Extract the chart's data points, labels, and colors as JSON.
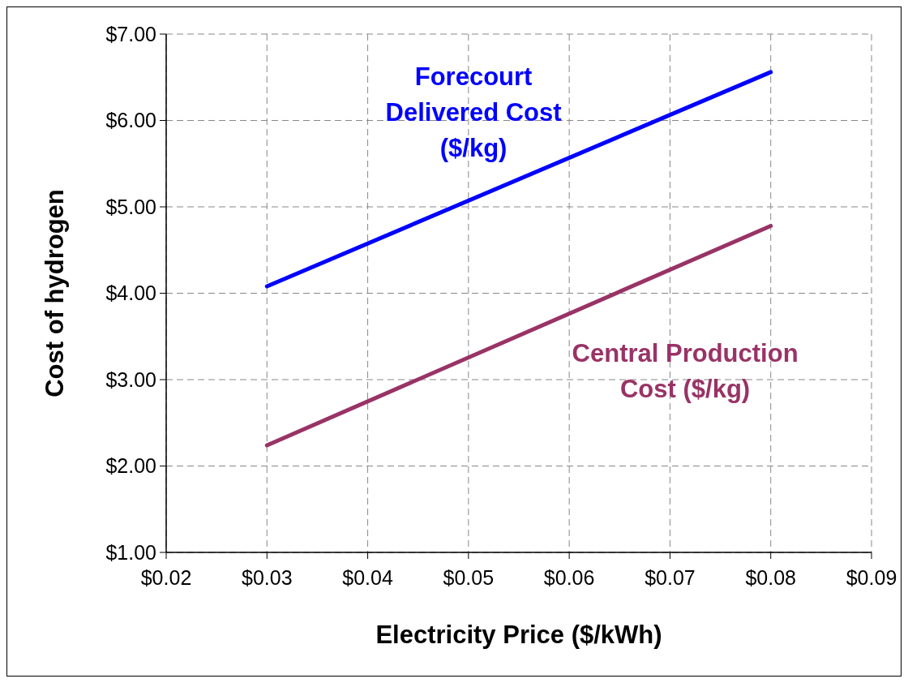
{
  "chart_data": {
    "type": "line",
    "xlabel": "Electricity Price ($/kWh)",
    "ylabel": "Cost of hydrogen",
    "x": [
      0.03,
      0.08
    ],
    "series": [
      {
        "name": "Forecourt Delivered Cost ($/kg)",
        "color": "#0000ff",
        "values": [
          4.08,
          6.56
        ]
      },
      {
        "name": "Central Production Cost ($/kg)",
        "color": "#993366",
        "values": [
          2.24,
          4.78
        ]
      }
    ],
    "xlim": [
      0.02,
      0.09
    ],
    "xticks": [
      {
        "value": 0.02,
        "label": "$0.02"
      },
      {
        "value": 0.03,
        "label": "$0.03"
      },
      {
        "value": 0.04,
        "label": "$0.04"
      },
      {
        "value": 0.05,
        "label": "$0.05"
      },
      {
        "value": 0.06,
        "label": "$0.06"
      },
      {
        "value": 0.07,
        "label": "$0.07"
      },
      {
        "value": 0.08,
        "label": "$0.08"
      },
      {
        "value": 0.09,
        "label": "$0.09"
      }
    ],
    "ylim": [
      1,
      7
    ],
    "yticks": [
      {
        "value": 1,
        "label": "$1.00"
      },
      {
        "value": 2,
        "label": "$2.00"
      },
      {
        "value": 3,
        "label": "$3.00"
      },
      {
        "value": 4,
        "label": "$4.00"
      },
      {
        "value": 5,
        "label": "$5.00"
      },
      {
        "value": 6,
        "label": "$6.00"
      },
      {
        "value": 7,
        "label": "$7.00"
      }
    ],
    "grid": true,
    "marker": "none",
    "line_style": "solid"
  }
}
